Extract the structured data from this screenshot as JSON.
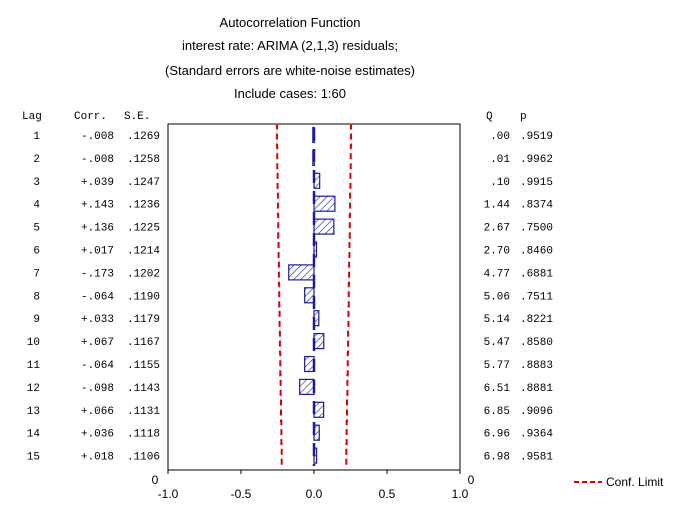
{
  "chart_data": {
    "type": "bar",
    "orientation": "horizontal",
    "title_lines": [
      "Autocorrelation Function",
      "interest rate: ARIMA (2,1,3) residuals;",
      "(Standard errors are white-noise estimates)",
      "Include cases: 1:60"
    ],
    "columns": {
      "lag": "Lag",
      "corr": "Corr.",
      "se": "S.E.",
      "q": "Q",
      "p": "p"
    },
    "rows": [
      {
        "lag": "1",
        "corr": "-.008",
        "se": ".1269",
        "q": ".00",
        "p": ".9519"
      },
      {
        "lag": "2",
        "corr": "-.008",
        "se": ".1258",
        "q": ".01",
        "p": ".9962"
      },
      {
        "lag": "3",
        "corr": "+.039",
        "se": ".1247",
        "q": ".10",
        "p": ".9915"
      },
      {
        "lag": "4",
        "corr": "+.143",
        "se": ".1236",
        "q": "1.44",
        "p": ".8374"
      },
      {
        "lag": "5",
        "corr": "+.136",
        "se": ".1225",
        "q": "2.67",
        "p": ".7500"
      },
      {
        "lag": "6",
        "corr": "+.017",
        "se": ".1214",
        "q": "2.70",
        "p": ".8460"
      },
      {
        "lag": "7",
        "corr": "-.173",
        "se": ".1202",
        "q": "4.77",
        "p": ".6881"
      },
      {
        "lag": "8",
        "corr": "-.064",
        "se": ".1190",
        "q": "5.06",
        "p": ".7511"
      },
      {
        "lag": "9",
        "corr": "+.033",
        "se": ".1179",
        "q": "5.14",
        "p": ".8221"
      },
      {
        "lag": "10",
        "corr": "+.067",
        "se": ".1167",
        "q": "5.47",
        "p": ".8580"
      },
      {
        "lag": "11",
        "corr": "-.064",
        "se": ".1155",
        "q": "5.77",
        "p": ".8883"
      },
      {
        "lag": "12",
        "corr": "-.098",
        "se": ".1143",
        "q": "6.51",
        "p": ".8881"
      },
      {
        "lag": "13",
        "corr": "+.066",
        "se": ".1131",
        "q": "6.85",
        "p": ".9096"
      },
      {
        "lag": "14",
        "corr": "+.036",
        "se": ".1118",
        "q": "6.96",
        "p": ".9364"
      },
      {
        "lag": "15",
        "corr": "+.018",
        "se": ".1106",
        "q": "6.98",
        "p": ".9581"
      }
    ],
    "x_ticks": [
      "-1.0",
      "-0.5",
      "0.0",
      "0.5",
      "1.0"
    ],
    "xlim": [
      -1.0,
      1.0
    ],
    "corner_labels": [
      "0",
      "0"
    ],
    "legend": {
      "label": "Conf. Limit",
      "position": "bottom-right"
    },
    "colors": {
      "bar_stroke": "#1a1aa0",
      "bar_hatch": "#1a1aa0",
      "conf_limit": "#e00000",
      "zero_line": "#1a1aa0"
    }
  }
}
